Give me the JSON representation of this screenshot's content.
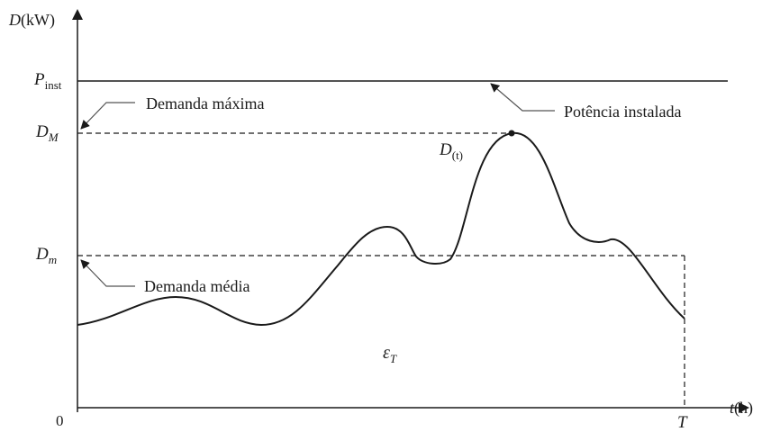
{
  "axes": {
    "y_label_var": "D",
    "y_label_unit": "(kW)",
    "x_label_var": "t",
    "x_label_unit": "(h)",
    "origin": "0",
    "end_time": "T"
  },
  "levels": {
    "installed_main": "P",
    "installed_sub": "inst",
    "max_main": "D",
    "max_sub": "M",
    "avg_main": "D",
    "avg_sub": "m"
  },
  "annotations": {
    "max_demand": "Demanda máxima",
    "installed_power": "Potência instalada",
    "average_demand": "Demanda média"
  },
  "curve": {
    "label_main": "D",
    "label_sub": "(t)"
  },
  "energy": {
    "label_main": "ε",
    "label_sub": "T"
  },
  "colors": {
    "ink": "#1a1a1a",
    "background": "#ffffff",
    "leader": "#555555"
  }
}
